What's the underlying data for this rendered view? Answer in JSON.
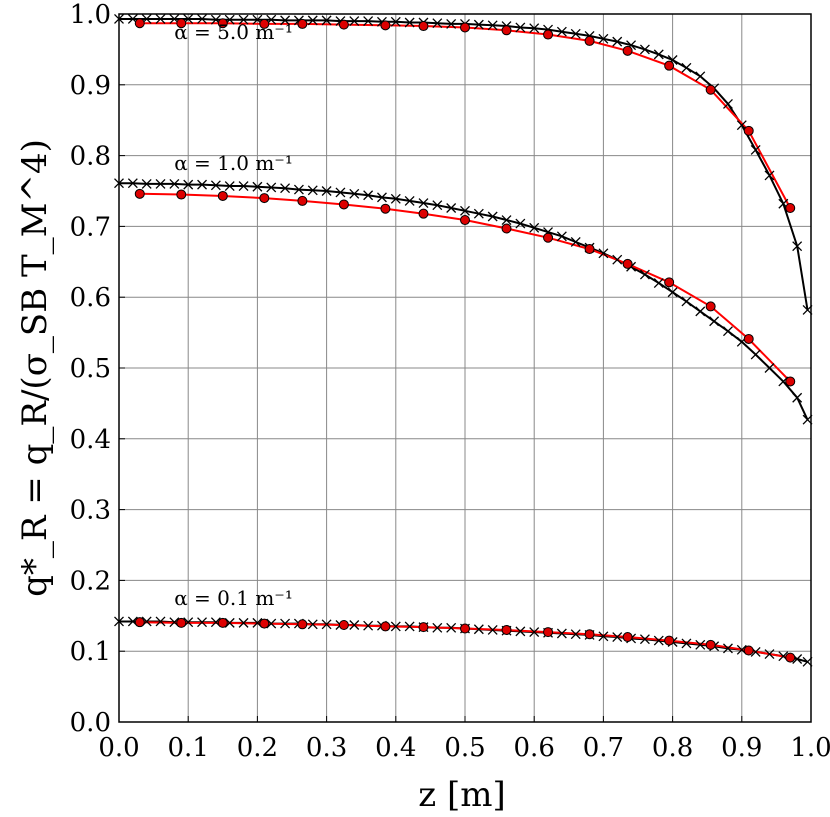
{
  "chart_data": {
    "type": "line",
    "xlabel": "z [m]",
    "ylabel": "q*_R = q_R/(σ_SB T_M^4)",
    "xlim": [
      0.0,
      1.0
    ],
    "ylim": [
      0.0,
      1.0
    ],
    "x_ticks": [
      "0.0",
      "0.1",
      "0.2",
      "0.3",
      "0.4",
      "0.5",
      "0.6",
      "0.7",
      "0.8",
      "0.9",
      "1.0"
    ],
    "y_ticks": [
      "0.0",
      "0.1",
      "0.2",
      "0.3",
      "0.4",
      "0.5",
      "0.6",
      "0.7",
      "0.8",
      "0.9",
      "1.0"
    ],
    "grid": true,
    "series_colors": {
      "solution": "#000000",
      "reference": "#ff0000",
      "marker_fill": "#dd0000"
    },
    "annotations": [
      {
        "text": "α = 5.0 m⁻¹",
        "x": 0.1,
        "y": 0.965
      },
      {
        "text": "α = 1.0 m⁻¹",
        "x": 0.1,
        "y": 0.78
      },
      {
        "text": "α = 0.1 m⁻¹",
        "x": 0.1,
        "y": 0.165
      }
    ],
    "groups": [
      {
        "label": "α = 5.0 m⁻¹",
        "black_x": [
          0.0,
          0.02,
          0.04,
          0.06,
          0.08,
          0.1,
          0.12,
          0.14,
          0.16,
          0.18,
          0.2,
          0.22,
          0.24,
          0.26,
          0.28,
          0.3,
          0.32,
          0.34,
          0.36,
          0.38,
          0.4,
          0.42,
          0.44,
          0.46,
          0.48,
          0.5,
          0.52,
          0.54,
          0.56,
          0.58,
          0.6,
          0.62,
          0.64,
          0.66,
          0.68,
          0.7,
          0.72,
          0.74,
          0.76,
          0.78,
          0.8,
          0.82,
          0.84,
          0.86,
          0.88,
          0.9,
          0.92,
          0.94,
          0.96,
          0.98,
          0.995
        ],
        "black_y": [
          0.993,
          0.993,
          0.993,
          0.993,
          0.993,
          0.993,
          0.993,
          0.992,
          0.992,
          0.992,
          0.992,
          0.992,
          0.991,
          0.991,
          0.991,
          0.991,
          0.99,
          0.99,
          0.99,
          0.989,
          0.989,
          0.988,
          0.988,
          0.987,
          0.986,
          0.986,
          0.985,
          0.984,
          0.983,
          0.981,
          0.98,
          0.978,
          0.975,
          0.972,
          0.969,
          0.965,
          0.961,
          0.956,
          0.95,
          0.943,
          0.935,
          0.924,
          0.912,
          0.895,
          0.873,
          0.843,
          0.808,
          0.772,
          0.732,
          0.672,
          0.582
        ],
        "red_x": [
          0.03,
          0.09,
          0.15,
          0.21,
          0.265,
          0.325,
          0.385,
          0.44,
          0.5,
          0.56,
          0.62,
          0.68,
          0.735,
          0.795,
          0.855,
          0.91,
          0.97
        ],
        "red_y": [
          0.987,
          0.987,
          0.987,
          0.986,
          0.986,
          0.985,
          0.984,
          0.983,
          0.981,
          0.977,
          0.971,
          0.962,
          0.948,
          0.927,
          0.893,
          0.835,
          0.726
        ]
      },
      {
        "label": "α = 1.0 m⁻¹",
        "black_x": [
          0.0,
          0.02,
          0.04,
          0.06,
          0.08,
          0.1,
          0.12,
          0.14,
          0.16,
          0.18,
          0.2,
          0.22,
          0.24,
          0.26,
          0.28,
          0.3,
          0.32,
          0.34,
          0.36,
          0.38,
          0.4,
          0.42,
          0.44,
          0.46,
          0.48,
          0.5,
          0.52,
          0.54,
          0.56,
          0.58,
          0.6,
          0.62,
          0.64,
          0.66,
          0.68,
          0.7,
          0.72,
          0.74,
          0.76,
          0.78,
          0.8,
          0.82,
          0.84,
          0.86,
          0.88,
          0.9,
          0.92,
          0.94,
          0.96,
          0.98,
          0.995
        ],
        "black_y": [
          0.761,
          0.761,
          0.76,
          0.76,
          0.76,
          0.759,
          0.759,
          0.758,
          0.757,
          0.757,
          0.756,
          0.755,
          0.754,
          0.752,
          0.751,
          0.75,
          0.748,
          0.746,
          0.744,
          0.741,
          0.739,
          0.736,
          0.733,
          0.73,
          0.726,
          0.722,
          0.718,
          0.714,
          0.709,
          0.704,
          0.698,
          0.692,
          0.686,
          0.678,
          0.67,
          0.662,
          0.653,
          0.643,
          0.632,
          0.62,
          0.607,
          0.594,
          0.58,
          0.566,
          0.552,
          0.537,
          0.519,
          0.5,
          0.481,
          0.458,
          0.427
        ],
        "red_x": [
          0.03,
          0.09,
          0.15,
          0.21,
          0.265,
          0.325,
          0.385,
          0.44,
          0.5,
          0.56,
          0.62,
          0.68,
          0.735,
          0.795,
          0.855,
          0.91,
          0.97
        ],
        "red_y": [
          0.746,
          0.745,
          0.743,
          0.74,
          0.736,
          0.731,
          0.725,
          0.718,
          0.709,
          0.697,
          0.684,
          0.668,
          0.647,
          0.621,
          0.587,
          0.541,
          0.481
        ]
      },
      {
        "label": "α = 0.1 m⁻¹",
        "black_x": [
          0.0,
          0.02,
          0.04,
          0.06,
          0.08,
          0.1,
          0.12,
          0.14,
          0.16,
          0.18,
          0.2,
          0.22,
          0.24,
          0.26,
          0.28,
          0.3,
          0.32,
          0.34,
          0.36,
          0.38,
          0.4,
          0.42,
          0.44,
          0.46,
          0.48,
          0.5,
          0.52,
          0.54,
          0.56,
          0.58,
          0.6,
          0.62,
          0.64,
          0.66,
          0.68,
          0.7,
          0.72,
          0.74,
          0.76,
          0.78,
          0.8,
          0.82,
          0.84,
          0.86,
          0.88,
          0.9,
          0.92,
          0.94,
          0.96,
          0.98,
          0.995
        ],
        "black_y": [
          0.142,
          0.142,
          0.142,
          0.142,
          0.141,
          0.141,
          0.141,
          0.141,
          0.14,
          0.14,
          0.14,
          0.139,
          0.139,
          0.139,
          0.138,
          0.138,
          0.137,
          0.137,
          0.136,
          0.136,
          0.135,
          0.135,
          0.134,
          0.133,
          0.133,
          0.132,
          0.131,
          0.13,
          0.129,
          0.128,
          0.127,
          0.126,
          0.125,
          0.124,
          0.123,
          0.121,
          0.12,
          0.118,
          0.117,
          0.115,
          0.113,
          0.111,
          0.109,
          0.107,
          0.104,
          0.102,
          0.099,
          0.096,
          0.093,
          0.089,
          0.085
        ],
        "red_x": [
          0.03,
          0.09,
          0.15,
          0.21,
          0.265,
          0.325,
          0.385,
          0.44,
          0.5,
          0.56,
          0.62,
          0.68,
          0.735,
          0.795,
          0.855,
          0.91,
          0.97
        ],
        "red_y": [
          0.141,
          0.14,
          0.14,
          0.139,
          0.138,
          0.137,
          0.135,
          0.134,
          0.132,
          0.13,
          0.127,
          0.124,
          0.12,
          0.115,
          0.109,
          0.101,
          0.091
        ]
      }
    ]
  }
}
